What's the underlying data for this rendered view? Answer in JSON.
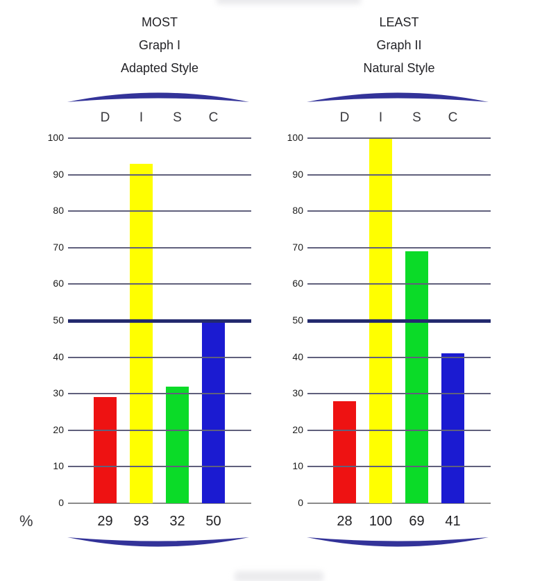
{
  "percent_label": "%",
  "colors": {
    "background": "#ffffff",
    "arc": "#333399",
    "gridline": "#60607c",
    "emphasized_gridline": "#232a6e",
    "baseline": "#8a8a8a",
    "disc": {
      "D": "#ee1212",
      "I": "#ffff00",
      "S": "#0bdb28",
      "C": "#1b1bd1"
    }
  },
  "chart_data": [
    {
      "type": "bar",
      "title_lines": [
        "MOST",
        "Graph I",
        "Adapted Style"
      ],
      "categories": [
        "D",
        "I",
        "S",
        "C"
      ],
      "values": [
        29,
        93,
        32,
        50
      ],
      "value_labels": [
        "29",
        "93",
        "32",
        "50"
      ],
      "bar_colors": [
        "#ee1212",
        "#ffff00",
        "#0bdb28",
        "#1b1bd1"
      ],
      "ylabel": "%",
      "ylim": [
        0,
        100
      ],
      "yticks": [
        0,
        10,
        20,
        30,
        40,
        50,
        60,
        70,
        80,
        90,
        100
      ],
      "emphasized_gridline": 50,
      "grid": true,
      "legend": false
    },
    {
      "type": "bar",
      "title_lines": [
        "LEAST",
        "Graph II",
        "Natural Style"
      ],
      "categories": [
        "D",
        "I",
        "S",
        "C"
      ],
      "values": [
        28,
        100,
        69,
        41
      ],
      "value_labels": [
        "28",
        "100",
        "69",
        "41"
      ],
      "bar_colors": [
        "#ee1212",
        "#ffff00",
        "#0bdb28",
        "#1b1bd1"
      ],
      "ylabel": "%",
      "ylim": [
        0,
        100
      ],
      "yticks": [
        0,
        10,
        20,
        30,
        40,
        50,
        60,
        70,
        80,
        90,
        100
      ],
      "emphasized_gridline": 50,
      "grid": true,
      "legend": false
    }
  ]
}
